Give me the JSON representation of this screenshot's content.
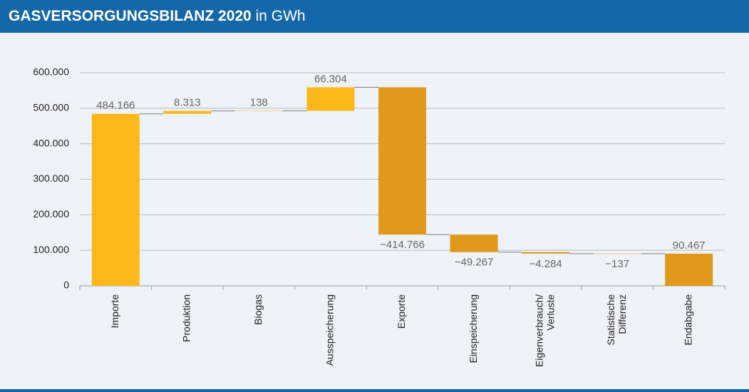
{
  "chart_data": {
    "type": "waterfall",
    "title": "GASVERSORGUNGSBILANZ 2020",
    "subtitle": "in GWh",
    "categories": [
      [
        "Importe"
      ],
      [
        "Produktion"
      ],
      [
        "Biogas"
      ],
      [
        "Ausspeicherung"
      ],
      [
        "Exporte"
      ],
      [
        "Einspeicherung"
      ],
      [
        "Eigenverbrauch/",
        "Verluste"
      ],
      [
        "Statistische",
        "Differenz"
      ],
      [
        "Endabgabe"
      ]
    ],
    "values": [
      484166,
      8313,
      138,
      66304,
      -414766,
      -49267,
      -4284,
      -137,
      90467
    ],
    "value_labels": [
      "484.166",
      "8.313",
      "138",
      "66.304",
      "−414.766",
      "−49.267",
      "−4.284",
      "−137",
      "90.467"
    ],
    "is_total": [
      false,
      false,
      false,
      false,
      false,
      false,
      false,
      false,
      true
    ],
    "increase_color": "#fbb818",
    "decrease_color": "#e0991b",
    "total_color": "#e0991b",
    "ylim": [
      0,
      600000
    ],
    "yticks": [
      0,
      {
        "value": 100000,
        "label": "100.000"
      },
      {
        "value": 200000,
        "label": "200.000"
      },
      {
        "value": 300000,
        "label": "300.000"
      },
      {
        "value": 400000,
        "label": "400.000"
      },
      {
        "value": 500000,
        "label": "500.000"
      },
      {
        "value": 600000,
        "label": "600.000"
      }
    ],
    "grid": true
  }
}
